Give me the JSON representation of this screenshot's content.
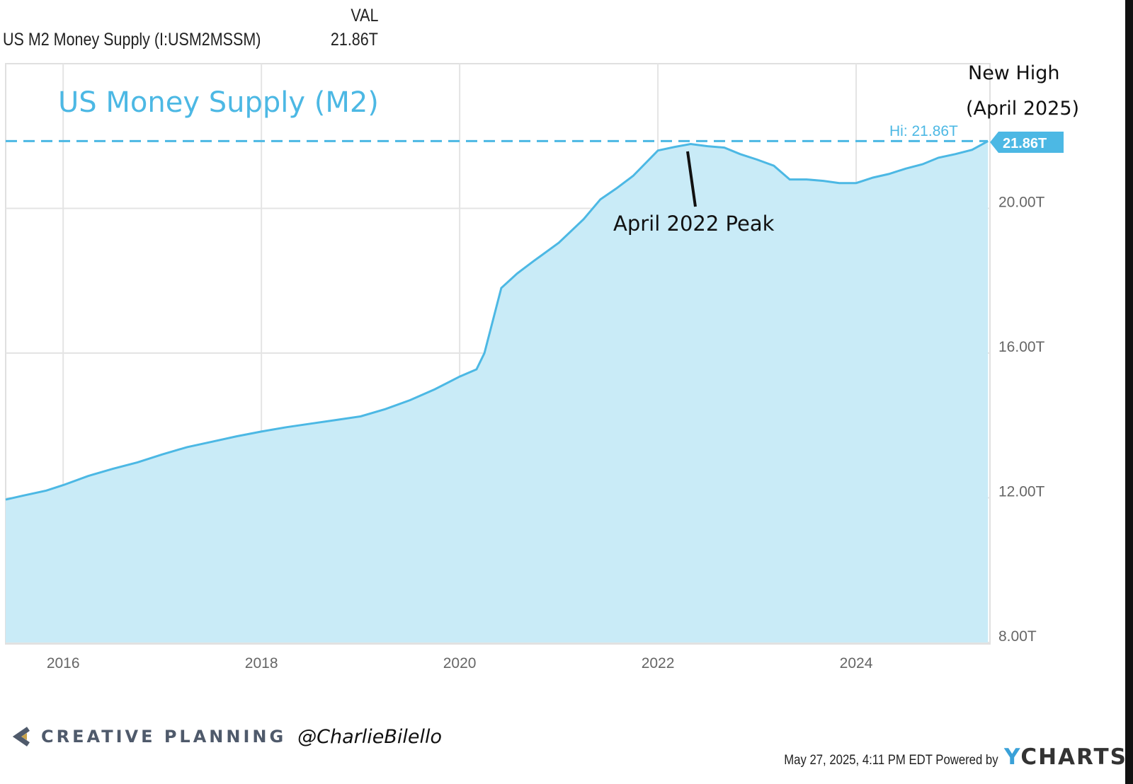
{
  "legend": {
    "column_header": "VAL",
    "series_name": "US M2 Money Supply (I:USM2MSSM)",
    "series_value": "21.86T"
  },
  "annotations": {
    "chart_title": "US Money Supply (M2)",
    "new_high_line1": "New High",
    "new_high_line2": "(April 2025)",
    "peak_label": "April 2022 Peak",
    "hi_label": "Hi: 21.86T",
    "last_value_badge": "21.86T"
  },
  "footer": {
    "brand": "CREATIVE PLANNING",
    "handle": "@CharlieBilello",
    "timestamp": "May 27, 2025, 4:11 PM EDT Powered by",
    "provider": "CHARTS",
    "provider_initial": "Y"
  },
  "colors": {
    "line": "#4cb8e4",
    "fill": "#c9ebf7",
    "badge": "#4cb8e4",
    "grid": "#e4e4e4"
  },
  "chart_data": {
    "type": "area",
    "title": "US Money Supply (M2)",
    "x_ticks": [
      "2016",
      "2018",
      "2020",
      "2022",
      "2024"
    ],
    "y_ticks": [
      "8.00T",
      "12.00T",
      "16.00T",
      "20.00T"
    ],
    "ylim": [
      8,
      24
    ],
    "xlim": [
      2015.42,
      2025.35
    ],
    "high_line": 21.86,
    "grid": true,
    "series": [
      {
        "name": "US M2 Money Supply (I:USM2MSSM)",
        "points": [
          [
            2015.42,
            11.95
          ],
          [
            2015.58,
            12.05
          ],
          [
            2015.83,
            12.2
          ],
          [
            2016.0,
            12.35
          ],
          [
            2016.25,
            12.6
          ],
          [
            2016.5,
            12.8
          ],
          [
            2016.75,
            12.98
          ],
          [
            2017.0,
            13.2
          ],
          [
            2017.25,
            13.4
          ],
          [
            2017.5,
            13.55
          ],
          [
            2017.75,
            13.7
          ],
          [
            2018.0,
            13.83
          ],
          [
            2018.25,
            13.95
          ],
          [
            2018.5,
            14.05
          ],
          [
            2018.75,
            14.15
          ],
          [
            2019.0,
            14.25
          ],
          [
            2019.25,
            14.45
          ],
          [
            2019.5,
            14.7
          ],
          [
            2019.75,
            15.0
          ],
          [
            2020.0,
            15.35
          ],
          [
            2020.17,
            15.55
          ],
          [
            2020.25,
            16.0
          ],
          [
            2020.42,
            17.8
          ],
          [
            2020.58,
            18.2
          ],
          [
            2020.75,
            18.55
          ],
          [
            2021.0,
            19.05
          ],
          [
            2021.25,
            19.7
          ],
          [
            2021.42,
            20.25
          ],
          [
            2021.58,
            20.55
          ],
          [
            2021.75,
            20.9
          ],
          [
            2022.0,
            21.6
          ],
          [
            2022.17,
            21.7
          ],
          [
            2022.33,
            21.78
          ],
          [
            2022.5,
            21.72
          ],
          [
            2022.67,
            21.68
          ],
          [
            2022.83,
            21.5
          ],
          [
            2023.0,
            21.35
          ],
          [
            2023.17,
            21.18
          ],
          [
            2023.33,
            20.8
          ],
          [
            2023.5,
            20.8
          ],
          [
            2023.67,
            20.76
          ],
          [
            2023.83,
            20.7
          ],
          [
            2024.0,
            20.7
          ],
          [
            2024.17,
            20.85
          ],
          [
            2024.33,
            20.95
          ],
          [
            2024.5,
            21.1
          ],
          [
            2024.67,
            21.22
          ],
          [
            2024.83,
            21.4
          ],
          [
            2025.0,
            21.5
          ],
          [
            2025.17,
            21.62
          ],
          [
            2025.33,
            21.86
          ]
        ]
      }
    ]
  }
}
